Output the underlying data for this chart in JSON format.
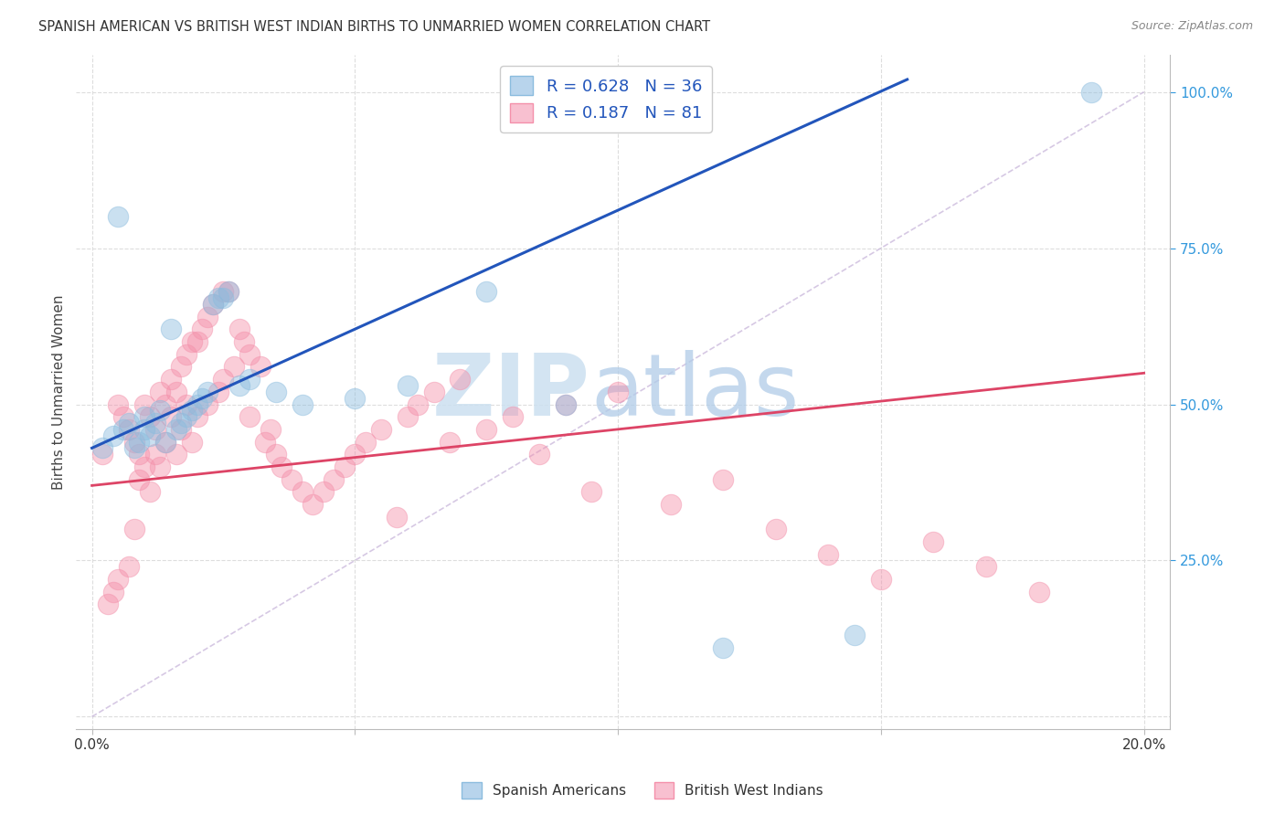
{
  "title": "SPANISH AMERICAN VS BRITISH WEST INDIAN BIRTHS TO UNMARRIED WOMEN CORRELATION CHART",
  "source": "Source: ZipAtlas.com",
  "ylabel": "Births to Unmarried Women",
  "background_color": "#ffffff",
  "blue_scatter_color": "#8bbcde",
  "pink_scatter_color": "#f490aa",
  "blue_line_color": "#2255bb",
  "pink_line_color": "#dd4466",
  "diag_line_color": "#ccbbdd",
  "grid_color": "#dddddd",
  "right_tick_color": "#3399dd",
  "legend_blue_label": "R = 0.628   N = 36",
  "legend_pink_label": "R = 0.187   N = 81",
  "blue_scatter_x": [
    0.002,
    0.004,
    0.005,
    0.006,
    0.007,
    0.008,
    0.009,
    0.01,
    0.01,
    0.011,
    0.012,
    0.013,
    0.014,
    0.015,
    0.016,
    0.017,
    0.018,
    0.019,
    0.02,
    0.021,
    0.022,
    0.023,
    0.024,
    0.025,
    0.026,
    0.028,
    0.03,
    0.035,
    0.04,
    0.05,
    0.06,
    0.075,
    0.09,
    0.12,
    0.145,
    0.19
  ],
  "blue_scatter_y": [
    0.43,
    0.45,
    0.8,
    0.46,
    0.47,
    0.43,
    0.44,
    0.48,
    0.46,
    0.45,
    0.47,
    0.49,
    0.44,
    0.62,
    0.46,
    0.47,
    0.48,
    0.49,
    0.5,
    0.51,
    0.52,
    0.66,
    0.67,
    0.67,
    0.68,
    0.53,
    0.54,
    0.52,
    0.5,
    0.51,
    0.53,
    0.68,
    0.5,
    0.11,
    0.13,
    1.0
  ],
  "pink_scatter_x": [
    0.002,
    0.003,
    0.004,
    0.005,
    0.005,
    0.006,
    0.007,
    0.007,
    0.008,
    0.008,
    0.009,
    0.009,
    0.01,
    0.01,
    0.011,
    0.011,
    0.012,
    0.012,
    0.013,
    0.013,
    0.014,
    0.014,
    0.015,
    0.015,
    0.016,
    0.016,
    0.017,
    0.017,
    0.018,
    0.018,
    0.019,
    0.019,
    0.02,
    0.02,
    0.021,
    0.022,
    0.022,
    0.023,
    0.024,
    0.025,
    0.025,
    0.026,
    0.027,
    0.028,
    0.029,
    0.03,
    0.03,
    0.032,
    0.033,
    0.034,
    0.035,
    0.036,
    0.038,
    0.04,
    0.042,
    0.044,
    0.046,
    0.048,
    0.05,
    0.052,
    0.055,
    0.058,
    0.06,
    0.062,
    0.065,
    0.068,
    0.07,
    0.075,
    0.08,
    0.085,
    0.09,
    0.095,
    0.1,
    0.11,
    0.12,
    0.13,
    0.14,
    0.15,
    0.16,
    0.17,
    0.18
  ],
  "pink_scatter_y": [
    0.42,
    0.18,
    0.2,
    0.5,
    0.22,
    0.48,
    0.46,
    0.24,
    0.44,
    0.3,
    0.42,
    0.38,
    0.5,
    0.4,
    0.48,
    0.36,
    0.46,
    0.42,
    0.52,
    0.4,
    0.5,
    0.44,
    0.54,
    0.48,
    0.52,
    0.42,
    0.56,
    0.46,
    0.58,
    0.5,
    0.6,
    0.44,
    0.6,
    0.48,
    0.62,
    0.64,
    0.5,
    0.66,
    0.52,
    0.68,
    0.54,
    0.68,
    0.56,
    0.62,
    0.6,
    0.58,
    0.48,
    0.56,
    0.44,
    0.46,
    0.42,
    0.4,
    0.38,
    0.36,
    0.34,
    0.36,
    0.38,
    0.4,
    0.42,
    0.44,
    0.46,
    0.32,
    0.48,
    0.5,
    0.52,
    0.44,
    0.54,
    0.46,
    0.48,
    0.42,
    0.5,
    0.36,
    0.52,
    0.34,
    0.38,
    0.3,
    0.26,
    0.22,
    0.28,
    0.24,
    0.2
  ],
  "blue_line": [
    0.0,
    0.155,
    0.43,
    1.02
  ],
  "pink_line": [
    0.0,
    0.2,
    0.37,
    0.55
  ],
  "diag_line": [
    0.0,
    0.2,
    0.0,
    1.0
  ],
  "xlim": [
    -0.003,
    0.205
  ],
  "ylim": [
    -0.02,
    1.06
  ],
  "xticks": [
    0.0,
    0.05,
    0.1,
    0.15,
    0.2
  ],
  "xticklabels": [
    "0.0%",
    "",
    "",
    "",
    "20.0%"
  ],
  "yticks_right": [
    0.25,
    0.5,
    0.75,
    1.0
  ],
  "yticklabels_right": [
    "25.0%",
    "50.0%",
    "75.0%",
    "100.0%"
  ],
  "grid_yticks": [
    0.0,
    0.25,
    0.5,
    0.75,
    1.0
  ],
  "grid_xticks": [
    0.0,
    0.05,
    0.1,
    0.15,
    0.2
  ]
}
